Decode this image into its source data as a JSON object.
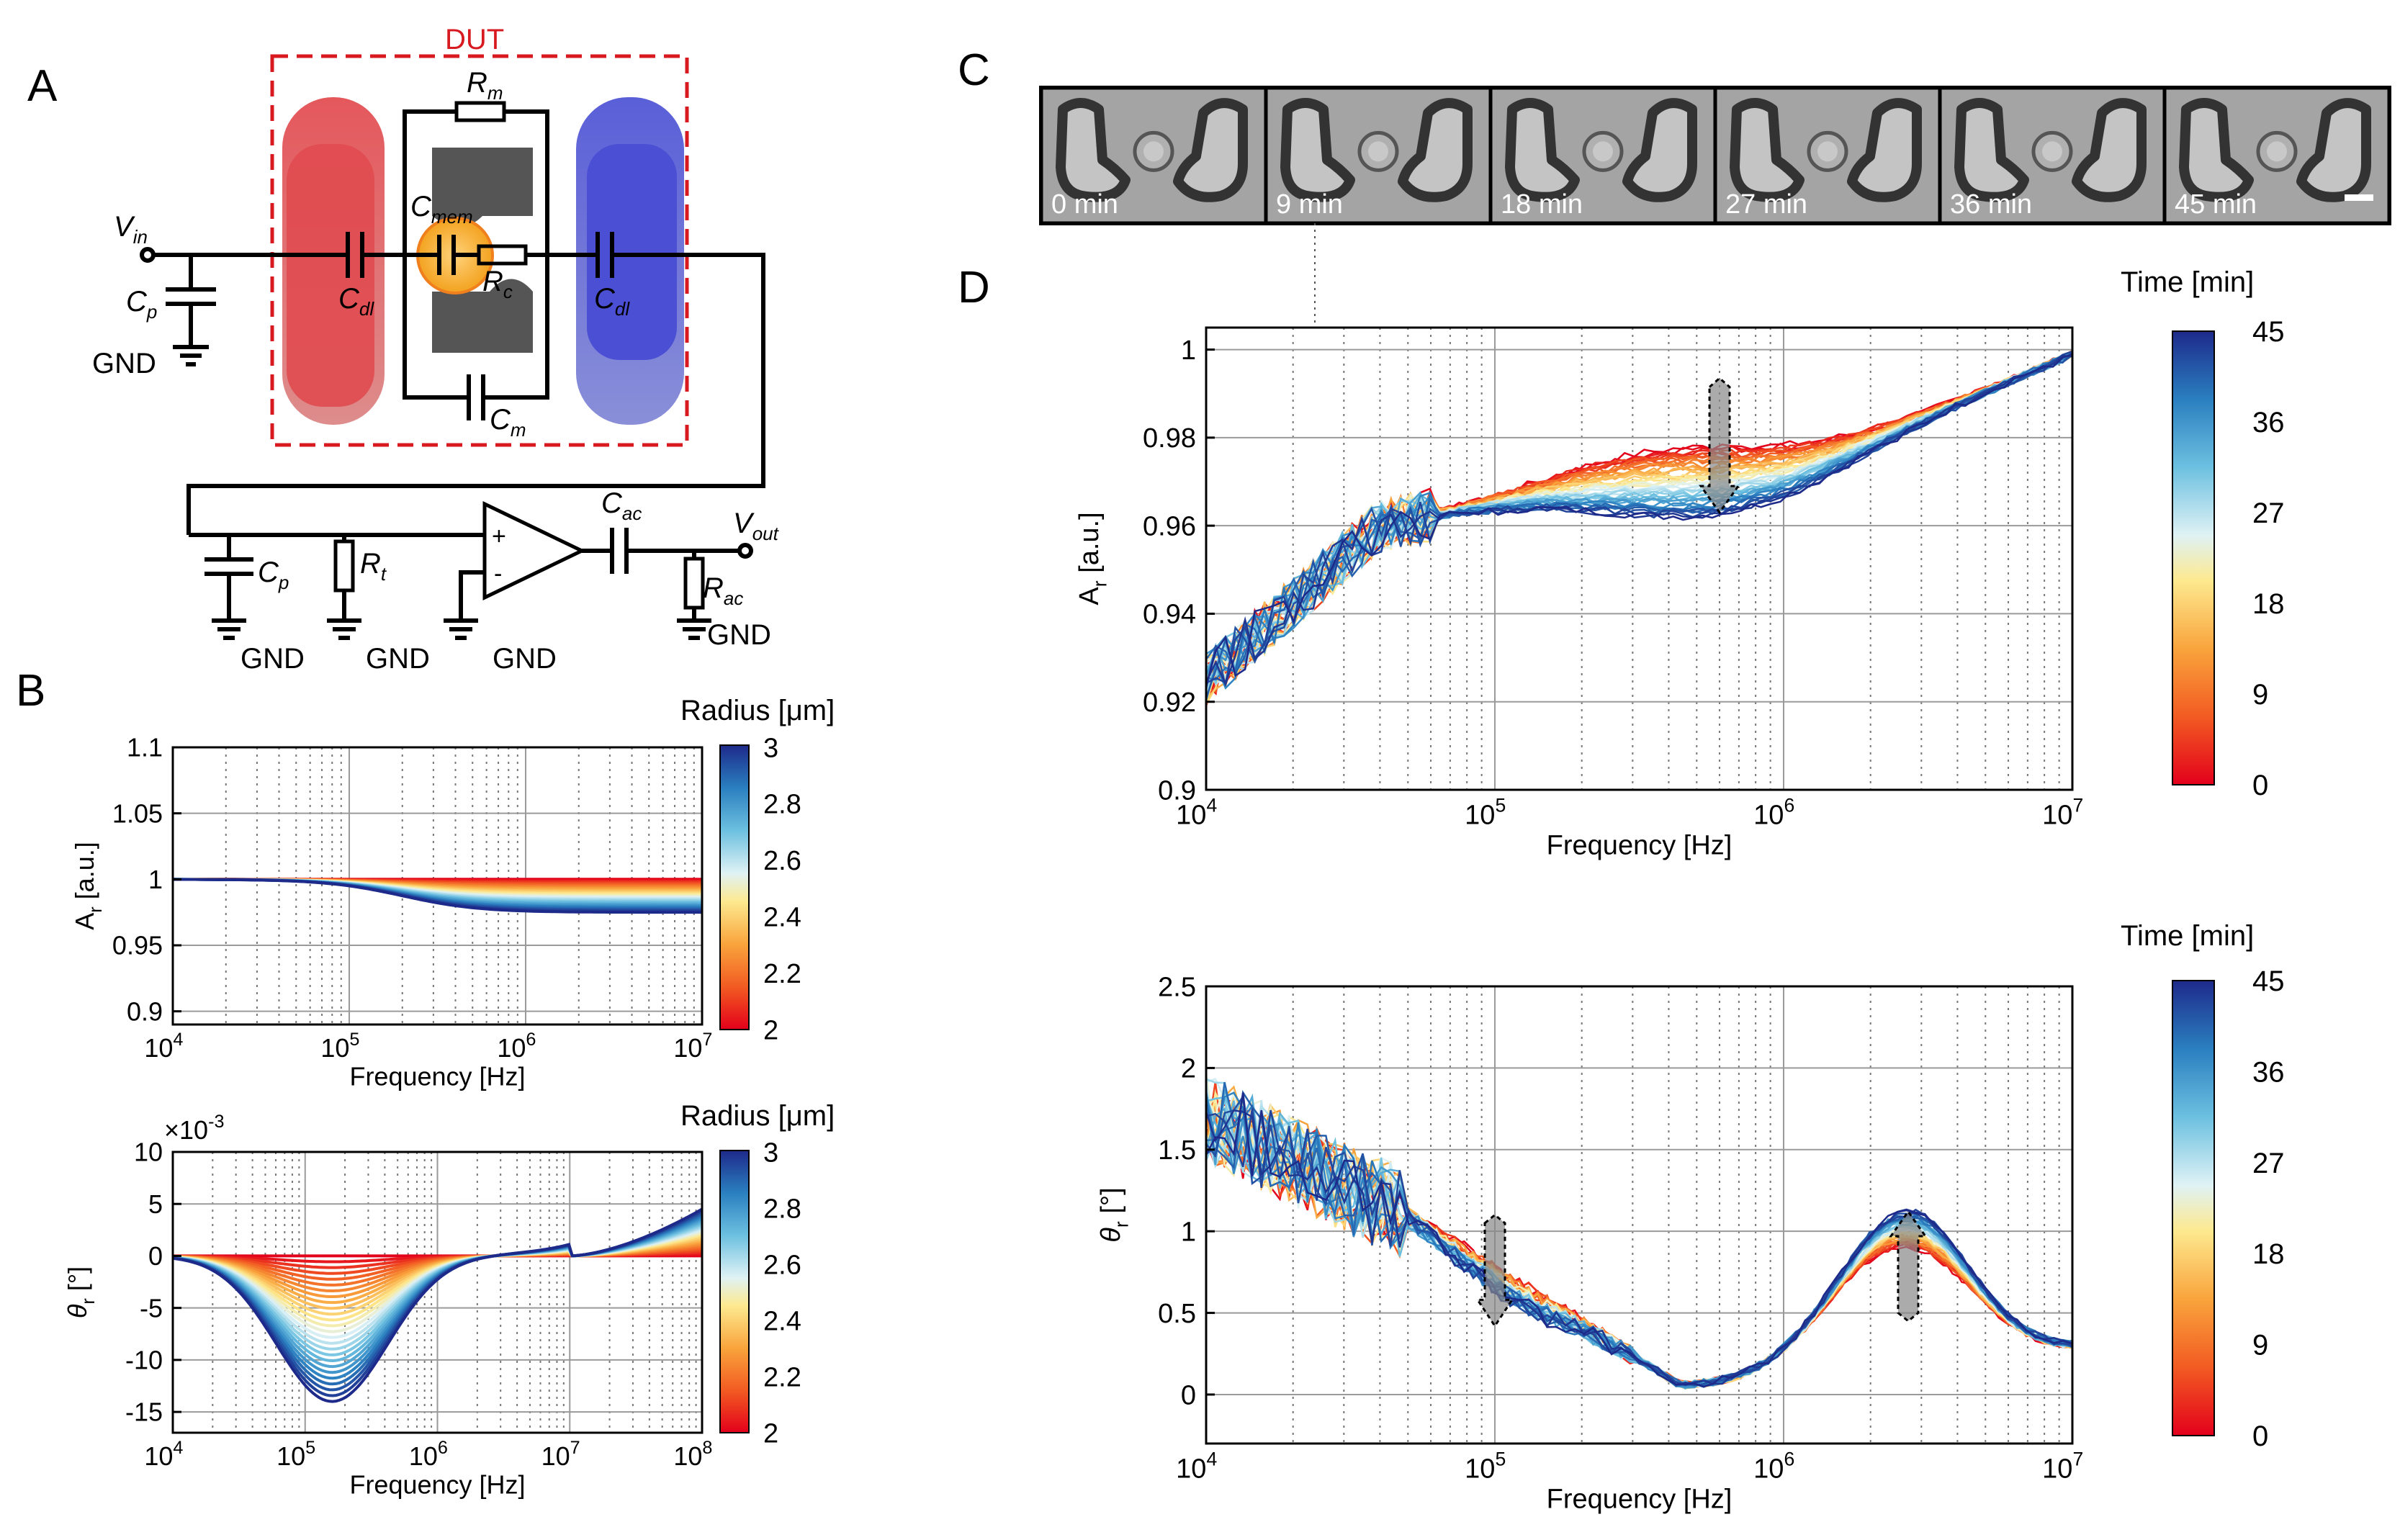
{
  "panel_labels": {
    "a": "A",
    "b": "B",
    "c": "C",
    "d": "D"
  },
  "circuit": {
    "dut_label": "DUT",
    "vin": "V",
    "vin_sub": "in",
    "vout": "V",
    "vout_sub": "out",
    "cp": "C",
    "cp_sub": "p",
    "cdl": "C",
    "cdl_sub": "dl",
    "rm": "R",
    "rm_sub": "m",
    "cmem": "C",
    "cmem_sub": "mem",
    "rc": "R",
    "rc_sub": "c",
    "cm": "C",
    "cm_sub": "m",
    "rt": "R",
    "rt_sub": "t",
    "cac": "C",
    "cac_sub": "ac",
    "rac": "R",
    "rac_sub": "ac",
    "gnd": "GND",
    "plus": "+",
    "minus": "-"
  },
  "micrographs": {
    "times": [
      "0 min",
      "9 min",
      "18 min",
      "27 min",
      "36 min",
      "45 min"
    ]
  },
  "colorbars": {
    "radius_title": "Radius [μm]",
    "radius_ticks": [
      "3",
      "2.8",
      "2.6",
      "2.4",
      "2.2",
      "2"
    ],
    "time_title": "Time [min]",
    "time_ticks": [
      "45",
      "36",
      "27",
      "18",
      "9",
      "0"
    ]
  },
  "chart_data": [
    {
      "id": "B-amplitude",
      "type": "line",
      "title": "",
      "xlabel": "Frequency [Hz]",
      "ylabel": "A",
      "ylabel_sub": "r",
      "ylabel_unit": " [a.u.]",
      "xscale": "log",
      "xlim": [
        10000,
        10000000
      ],
      "ylim": [
        0.89,
        1.1
      ],
      "xticks": [
        {
          "base": "10",
          "exp": "4"
        },
        {
          "base": "10",
          "exp": "5"
        },
        {
          "base": "10",
          "exp": "6"
        },
        {
          "base": "10",
          "exp": "7"
        }
      ],
      "yticks": [
        "1.1",
        "1.05",
        "1",
        "0.95",
        "0.9"
      ],
      "ytick_values": [
        1.1,
        1.05,
        1.0,
        0.95,
        0.9
      ],
      "series_param": "radius 2–3 μm",
      "model": {
        "start": 1.0,
        "final_min": 0.975,
        "final_max": 1.0,
        "transition_hz": 200000
      }
    },
    {
      "id": "B-phase",
      "type": "line",
      "xlabel": "Frequency [Hz]",
      "ylabel": "θ",
      "ylabel_sub": "r",
      "ylabel_unit": " [°]",
      "multiplier": "×10",
      "multiplier_exp": "-3",
      "xscale": "log",
      "xlim": [
        10000,
        100000000
      ],
      "ylim": [
        -17,
        10
      ],
      "xticks": [
        {
          "base": "10",
          "exp": "4"
        },
        {
          "base": "10",
          "exp": "5"
        },
        {
          "base": "10",
          "exp": "6"
        },
        {
          "base": "10",
          "exp": "7"
        },
        {
          "base": "10",
          "exp": "8"
        }
      ],
      "yticks": [
        "10",
        "5",
        "0",
        "-5",
        "-10",
        "-15"
      ],
      "ytick_values": [
        10,
        5,
        0,
        -5,
        -10,
        -15
      ],
      "model": {
        "min_dip": 0,
        "max_dip": -14,
        "dip_hz": 160000,
        "high_end": 4.5
      }
    },
    {
      "id": "D-amplitude",
      "type": "line",
      "xlabel": "Frequency [Hz]",
      "ylabel": "A",
      "ylabel_sub": "r",
      "ylabel_unit": " [a.u.]",
      "xscale": "log",
      "xlim": [
        10000,
        10000000
      ],
      "ylim": [
        0.9,
        1.005
      ],
      "xticks": [
        {
          "base": "10",
          "exp": "4"
        },
        {
          "base": "10",
          "exp": "5"
        },
        {
          "base": "10",
          "exp": "6"
        },
        {
          "base": "10",
          "exp": "7"
        }
      ],
      "yticks": [
        "1",
        "0.98",
        "0.96",
        "0.94",
        "0.92",
        "0.9"
      ],
      "ytick_values": [
        1.0,
        0.98,
        0.96,
        0.94,
        0.92,
        0.9
      ],
      "series_param": "time 0–45 min",
      "arrow_at_hz": 600000
    },
    {
      "id": "D-phase",
      "type": "line",
      "xlabel": "Frequency [Hz]",
      "ylabel": "θ",
      "ylabel_sub": "r",
      "ylabel_unit": " [°]",
      "xscale": "log",
      "xlim": [
        10000,
        10000000
      ],
      "ylim": [
        -0.3,
        2.5
      ],
      "xticks": [
        {
          "base": "10",
          "exp": "4"
        },
        {
          "base": "10",
          "exp": "5"
        },
        {
          "base": "10",
          "exp": "6"
        },
        {
          "base": "10",
          "exp": "7"
        }
      ],
      "yticks": [
        "2.5",
        "2",
        "1.5",
        "1",
        "0.5",
        "0"
      ],
      "ytick_values": [
        2.5,
        2.0,
        1.5,
        1.0,
        0.5,
        0.0
      ],
      "arrows_at_hz": [
        100000,
        2700000
      ]
    }
  ]
}
